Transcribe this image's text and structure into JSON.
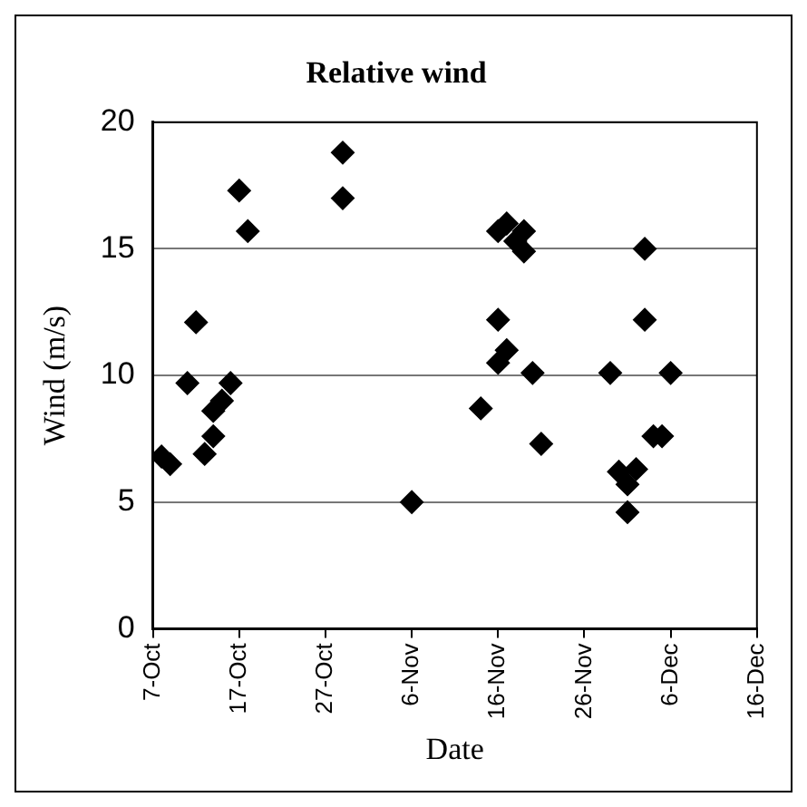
{
  "chart_data": {
    "type": "scatter",
    "title": "Relative wind",
    "xlabel": "Date",
    "ylabel": "Wind (m/s)",
    "x": [
      "--10-08",
      "--10-09",
      "--10-11",
      "--10-12",
      "--10-13",
      "--10-14",
      "--10-14",
      "--10-15",
      "--10-16",
      "--10-17",
      "--10-18",
      "--10-29",
      "--10-29",
      "--11-06",
      "--11-14",
      "--11-16",
      "--11-16",
      "--11-17",
      "--11-16",
      "--11-17",
      "--11-18",
      "--11-19",
      "--11-19",
      "--11-20",
      "--11-21",
      "--11-29",
      "--11-30",
      "--12-01",
      "--12-01",
      "--12-02",
      "--12-03",
      "--12-03",
      "--12-04",
      "--12-06",
      "--12-05"
    ],
    "series": [
      {
        "color": "#000000",
        "values": [
          6.8,
          6.5,
          9.7,
          12.1,
          6.9,
          7.6,
          8.6,
          9.0,
          9.7,
          17.3,
          15.7,
          18.8,
          17.0,
          5.0,
          8.7,
          12.2,
          10.5,
          11.0,
          15.7,
          16.0,
          15.3,
          15.7,
          14.9,
          10.1,
          7.3,
          10.1,
          6.2,
          5.7,
          4.6,
          6.3,
          15.0,
          12.2,
          7.6,
          10.1,
          7.6
        ]
      }
    ],
    "xlim": [
      "--10-07",
      "--12-16"
    ],
    "xticks": [
      {
        "value": "--10-07",
        "label": "7-Oct"
      },
      {
        "value": "--10-17",
        "label": "17-Oct"
      },
      {
        "value": "--10-27",
        "label": "27-Oct"
      },
      {
        "value": "--11-06",
        "label": "6-Nov"
      },
      {
        "value": "--11-16",
        "label": "16-Nov"
      },
      {
        "value": "--11-26",
        "label": "26-Nov"
      },
      {
        "value": "--12-06",
        "label": "6-Dec"
      },
      {
        "value": "--12-16",
        "label": "16-Dec"
      }
    ],
    "ylim": [
      0,
      20
    ],
    "yticks": [
      0,
      5,
      10,
      15,
      20
    ],
    "grid": "y",
    "legend": false,
    "marker": "diamond"
  }
}
